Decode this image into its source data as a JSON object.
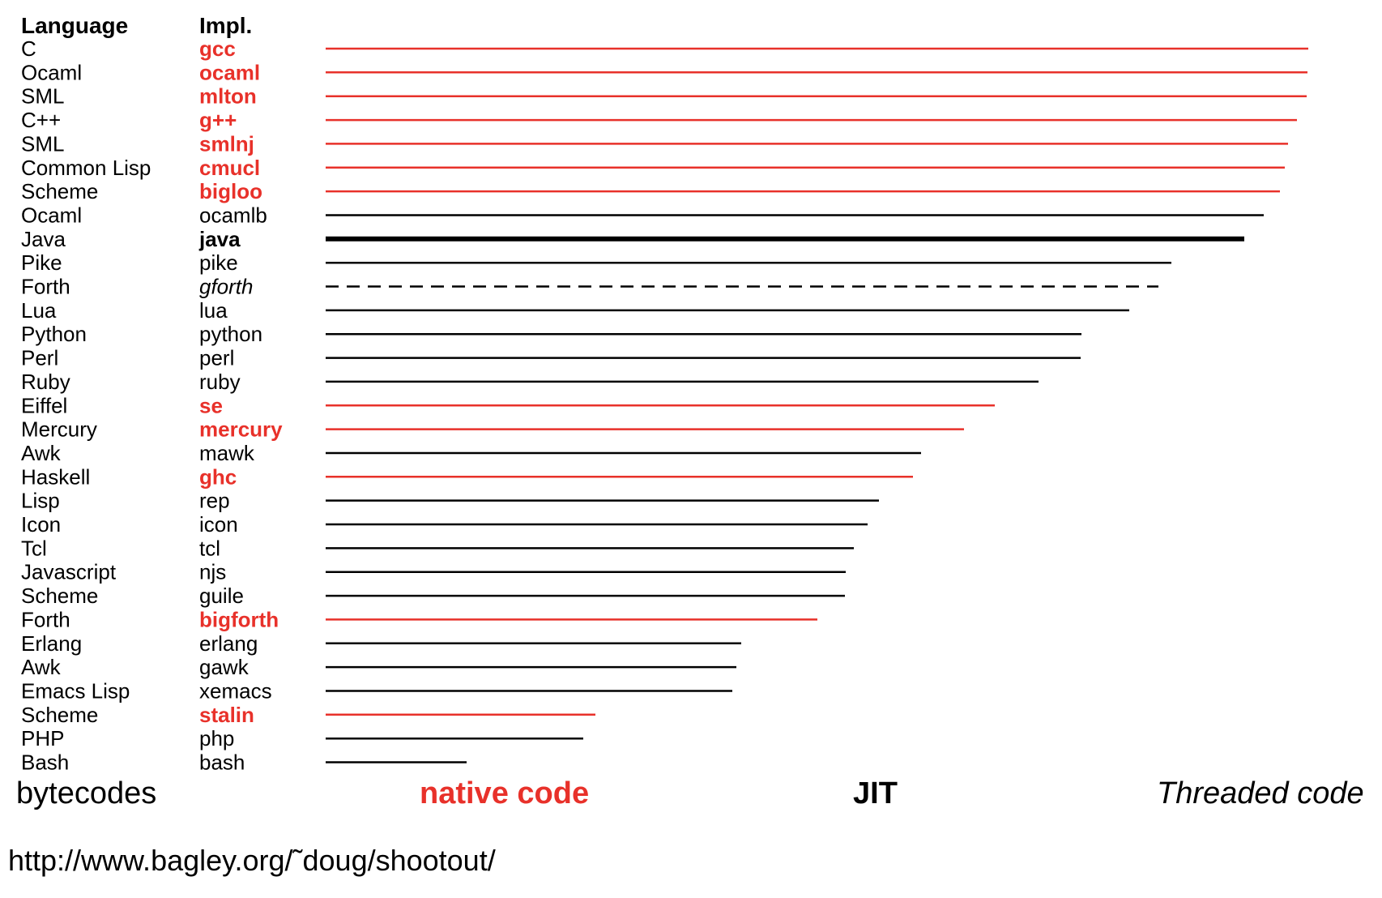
{
  "chart_data": {
    "type": "bar",
    "headers": {
      "language": "Language",
      "impl": "Impl."
    },
    "value_scale_max": 1213,
    "rows": [
      {
        "language": "C",
        "impl": "gcc",
        "kind": "native",
        "value": 1213
      },
      {
        "language": "Ocaml",
        "impl": "ocaml",
        "kind": "native",
        "value": 1212
      },
      {
        "language": "SML",
        "impl": "mlton",
        "kind": "native",
        "value": 1211
      },
      {
        "language": "C++",
        "impl": "g++",
        "kind": "native",
        "value": 1199
      },
      {
        "language": "SML",
        "impl": "smlnj",
        "kind": "native",
        "value": 1188
      },
      {
        "language": "Common Lisp",
        "impl": "cmucl",
        "kind": "native",
        "value": 1184
      },
      {
        "language": "Scheme",
        "impl": "bigloo",
        "kind": "native",
        "value": 1178
      },
      {
        "language": "Ocaml",
        "impl": "ocamlb",
        "kind": "bytecode",
        "value": 1158
      },
      {
        "language": "Java",
        "impl": "java",
        "kind": "jit",
        "value": 1134
      },
      {
        "language": "Pike",
        "impl": "pike",
        "kind": "bytecode",
        "value": 1044
      },
      {
        "language": "Forth",
        "impl": "gforth",
        "kind": "threaded",
        "value": 1028
      },
      {
        "language": "Lua",
        "impl": "lua",
        "kind": "bytecode",
        "value": 992
      },
      {
        "language": "Python",
        "impl": "python",
        "kind": "bytecode",
        "value": 933
      },
      {
        "language": "Perl",
        "impl": "perl",
        "kind": "bytecode",
        "value": 932
      },
      {
        "language": "Ruby",
        "impl": "ruby",
        "kind": "bytecode",
        "value": 880
      },
      {
        "language": "Eiffel",
        "impl": "se",
        "kind": "native",
        "value": 826
      },
      {
        "language": "Mercury",
        "impl": "mercury",
        "kind": "native",
        "value": 788
      },
      {
        "language": "Awk",
        "impl": "mawk",
        "kind": "bytecode",
        "value": 735
      },
      {
        "language": "Haskell",
        "impl": "ghc",
        "kind": "native",
        "value": 725
      },
      {
        "language": "Lisp",
        "impl": "rep",
        "kind": "bytecode",
        "value": 683
      },
      {
        "language": "Icon",
        "impl": "icon",
        "kind": "bytecode",
        "value": 669
      },
      {
        "language": "Tcl",
        "impl": "tcl",
        "kind": "bytecode",
        "value": 652
      },
      {
        "language": "Javascript",
        "impl": "njs",
        "kind": "bytecode",
        "value": 642
      },
      {
        "language": "Scheme",
        "impl": "guile",
        "kind": "bytecode",
        "value": 641
      },
      {
        "language": "Forth",
        "impl": "bigforth",
        "kind": "native",
        "value": 607
      },
      {
        "language": "Erlang",
        "impl": "erlang",
        "kind": "bytecode",
        "value": 513
      },
      {
        "language": "Awk",
        "impl": "gawk",
        "kind": "bytecode",
        "value": 507
      },
      {
        "language": "Emacs Lisp",
        "impl": "xemacs",
        "kind": "bytecode",
        "value": 502
      },
      {
        "language": "Scheme",
        "impl": "stalin",
        "kind": "native",
        "value": 333
      },
      {
        "language": "PHP",
        "impl": "php",
        "kind": "bytecode",
        "value": 318
      },
      {
        "language": "Bash",
        "impl": "bash",
        "kind": "bytecode",
        "value": 174
      }
    ],
    "legend": [
      {
        "kind": "bytecode",
        "label": "bytecodes"
      },
      {
        "kind": "native",
        "label": "native code"
      },
      {
        "kind": "jit",
        "label": "JIT"
      },
      {
        "kind": "threaded",
        "label": "Threaded code"
      }
    ],
    "colors": {
      "native": "#e8312a",
      "bytecode": "#000000",
      "jit": "#000000",
      "threaded": "#000000"
    }
  },
  "source": "http://www.bagley.org/˜doug/shootout/"
}
